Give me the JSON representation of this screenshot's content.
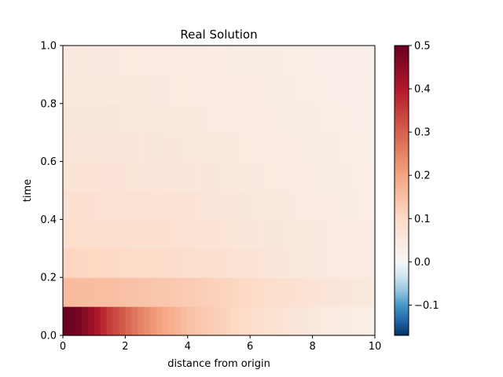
{
  "chart_data": {
    "type": "heatmap",
    "title": "Real Solution",
    "xlabel": "distance from origin",
    "ylabel": "time",
    "xlim": [
      0,
      10
    ],
    "ylim": [
      0,
      1
    ],
    "x_ticks": [
      "0",
      "2",
      "4",
      "6",
      "8",
      "10"
    ],
    "y_ticks": [
      "0.0",
      "0.2",
      "0.4",
      "0.6",
      "0.8",
      "1.0"
    ],
    "colormap": "RdBu_r",
    "color_range": [
      -0.17,
      0.5
    ],
    "colorbar_ticks": [
      "0.5",
      "0.4",
      "0.3",
      "0.2",
      "0.1",
      "0.0",
      "−0.1"
    ],
    "colorbar_tick_values": [
      0.5,
      0.4,
      0.3,
      0.2,
      0.1,
      0.0,
      -0.1
    ],
    "time_bands": [
      {
        "t0": 0.0,
        "t1": 0.1,
        "profile": [
          [
            0,
            0.5
          ],
          [
            0.5,
            0.48
          ],
          [
            1,
            0.42
          ],
          [
            1.5,
            0.35
          ],
          [
            2,
            0.3
          ],
          [
            2.5,
            0.25
          ],
          [
            3,
            0.21
          ],
          [
            3.5,
            0.18
          ],
          [
            4,
            0.15
          ],
          [
            5,
            0.12
          ],
          [
            6,
            0.09
          ],
          [
            7,
            0.07
          ],
          [
            8,
            0.05
          ],
          [
            9,
            0.04
          ],
          [
            10,
            0.03
          ]
        ]
      },
      {
        "t0": 0.1,
        "t1": 0.2,
        "profile": [
          [
            0,
            0.16
          ],
          [
            2,
            0.15
          ],
          [
            4,
            0.13
          ],
          [
            6,
            0.1
          ],
          [
            8,
            0.07
          ],
          [
            10,
            0.05
          ]
        ]
      },
      {
        "t0": 0.2,
        "t1": 0.3,
        "profile": [
          [
            0,
            0.11
          ],
          [
            2,
            0.1
          ],
          [
            4,
            0.09
          ],
          [
            6,
            0.07
          ],
          [
            8,
            0.05
          ],
          [
            10,
            0.04
          ]
        ]
      },
      {
        "t0": 0.3,
        "t1": 0.4,
        "profile": [
          [
            0,
            0.09
          ],
          [
            2,
            0.085
          ],
          [
            4,
            0.075
          ],
          [
            6,
            0.06
          ],
          [
            8,
            0.05
          ],
          [
            10,
            0.04
          ]
        ]
      },
      {
        "t0": 0.4,
        "t1": 0.5,
        "profile": [
          [
            0,
            0.08
          ],
          [
            2,
            0.075
          ],
          [
            4,
            0.068
          ],
          [
            6,
            0.055
          ],
          [
            8,
            0.045
          ],
          [
            10,
            0.035
          ]
        ]
      },
      {
        "t0": 0.5,
        "t1": 0.6,
        "profile": [
          [
            0,
            0.07
          ],
          [
            2,
            0.066
          ],
          [
            4,
            0.06
          ],
          [
            6,
            0.05
          ],
          [
            8,
            0.042
          ],
          [
            10,
            0.034
          ]
        ]
      },
      {
        "t0": 0.6,
        "t1": 0.7,
        "profile": [
          [
            0,
            0.065
          ],
          [
            2,
            0.06
          ],
          [
            4,
            0.055
          ],
          [
            6,
            0.047
          ],
          [
            8,
            0.04
          ],
          [
            10,
            0.033
          ]
        ]
      },
      {
        "t0": 0.7,
        "t1": 0.8,
        "profile": [
          [
            0,
            0.058
          ],
          [
            2,
            0.055
          ],
          [
            4,
            0.05
          ],
          [
            6,
            0.044
          ],
          [
            8,
            0.038
          ],
          [
            10,
            0.032
          ]
        ]
      },
      {
        "t0": 0.8,
        "t1": 0.9,
        "profile": [
          [
            0,
            0.054
          ],
          [
            2,
            0.051
          ],
          [
            4,
            0.047
          ],
          [
            6,
            0.042
          ],
          [
            8,
            0.036
          ],
          [
            10,
            0.031
          ]
        ]
      },
      {
        "t0": 0.9,
        "t1": 1.0,
        "profile": [
          [
            0,
            0.05
          ],
          [
            2,
            0.048
          ],
          [
            4,
            0.044
          ],
          [
            6,
            0.04
          ],
          [
            8,
            0.035
          ],
          [
            10,
            0.03
          ]
        ]
      }
    ]
  }
}
